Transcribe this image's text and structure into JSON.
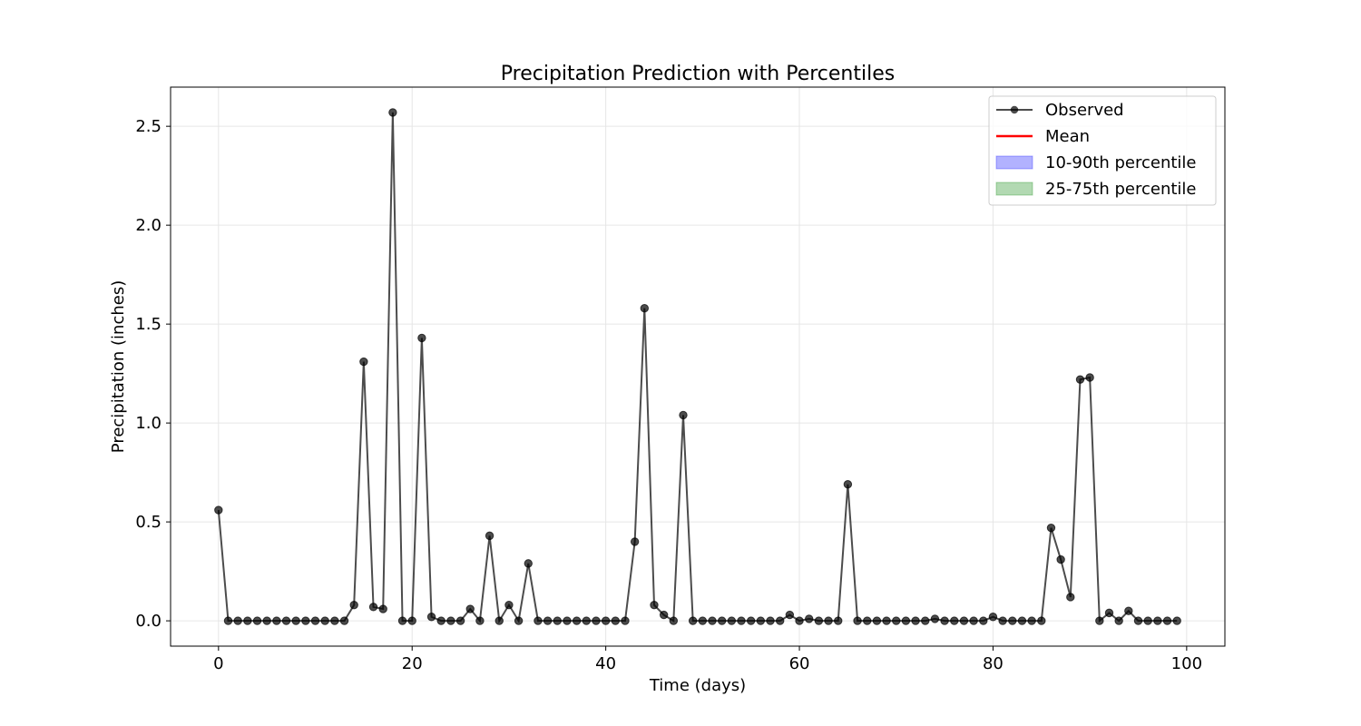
{
  "chart_data": {
    "type": "line",
    "title": "Precipitation Prediction with Percentiles",
    "xlabel": "Time (days)",
    "ylabel": "Precipitation (inches)",
    "xlim": [
      -4.95,
      103.95
    ],
    "ylim": [
      -0.128,
      2.698
    ],
    "xticks": [
      0,
      20,
      40,
      60,
      80,
      100
    ],
    "yticks": [
      0.0,
      0.5,
      1.0,
      1.5,
      2.0,
      2.5
    ],
    "xtick_labels": [
      "0",
      "20",
      "40",
      "60",
      "80",
      "100"
    ],
    "ytick_labels": [
      "0.0",
      "0.5",
      "1.0",
      "1.5",
      "2.0",
      "2.5"
    ],
    "grid": true,
    "legend_position": "top-right",
    "legend": [
      {
        "label": "Observed",
        "kind": "line-marker",
        "color": "#000000"
      },
      {
        "label": "Mean",
        "kind": "line",
        "color": "#ff0000"
      },
      {
        "label": "10-90th percentile",
        "kind": "patch",
        "color": "#0000ff"
      },
      {
        "label": "25-75th percentile",
        "kind": "patch",
        "color": "#008000"
      }
    ],
    "series": [
      {
        "name": "Observed",
        "color": "#000000",
        "x": [
          0,
          1,
          2,
          3,
          4,
          5,
          6,
          7,
          8,
          9,
          10,
          11,
          12,
          13,
          14,
          15,
          16,
          17,
          18,
          19,
          20,
          21,
          22,
          23,
          24,
          25,
          26,
          27,
          28,
          29,
          30,
          31,
          32,
          33,
          34,
          35,
          36,
          37,
          38,
          39,
          40,
          41,
          42,
          43,
          44,
          45,
          46,
          47,
          48,
          49,
          50,
          51,
          52,
          53,
          54,
          55,
          56,
          57,
          58,
          59,
          60,
          61,
          62,
          63,
          64,
          65,
          66,
          67,
          68,
          69,
          70,
          71,
          72,
          73,
          74,
          75,
          76,
          77,
          78,
          79,
          80,
          81,
          82,
          83,
          84,
          85,
          86,
          87,
          88,
          89,
          90,
          91,
          92,
          93,
          94,
          95,
          96,
          97,
          98,
          99
        ],
        "y": [
          0.56,
          0,
          0,
          0,
          0,
          0,
          0,
          0,
          0,
          0,
          0,
          0,
          0,
          0,
          0.08,
          1.31,
          0.07,
          0.06,
          2.57,
          0,
          0,
          1.43,
          0.02,
          0,
          0,
          0,
          0.06,
          0,
          0.43,
          0,
          0.08,
          0,
          0.29,
          0,
          0,
          0,
          0,
          0,
          0,
          0,
          0,
          0,
          0,
          0.4,
          1.58,
          0.08,
          0.03,
          0,
          1.04,
          0,
          0,
          0,
          0,
          0,
          0,
          0,
          0,
          0,
          0,
          0.03,
          0,
          0.01,
          0,
          0,
          0,
          0.69,
          0,
          0,
          0,
          0,
          0,
          0,
          0,
          0,
          0.01,
          0,
          0,
          0,
          0,
          0,
          0.02,
          0,
          0,
          0,
          0,
          0,
          0.47,
          0.31,
          0.12,
          1.22,
          1.23,
          0,
          0.04,
          0,
          0.05,
          0,
          0,
          0,
          0,
          0
        ]
      }
    ]
  }
}
